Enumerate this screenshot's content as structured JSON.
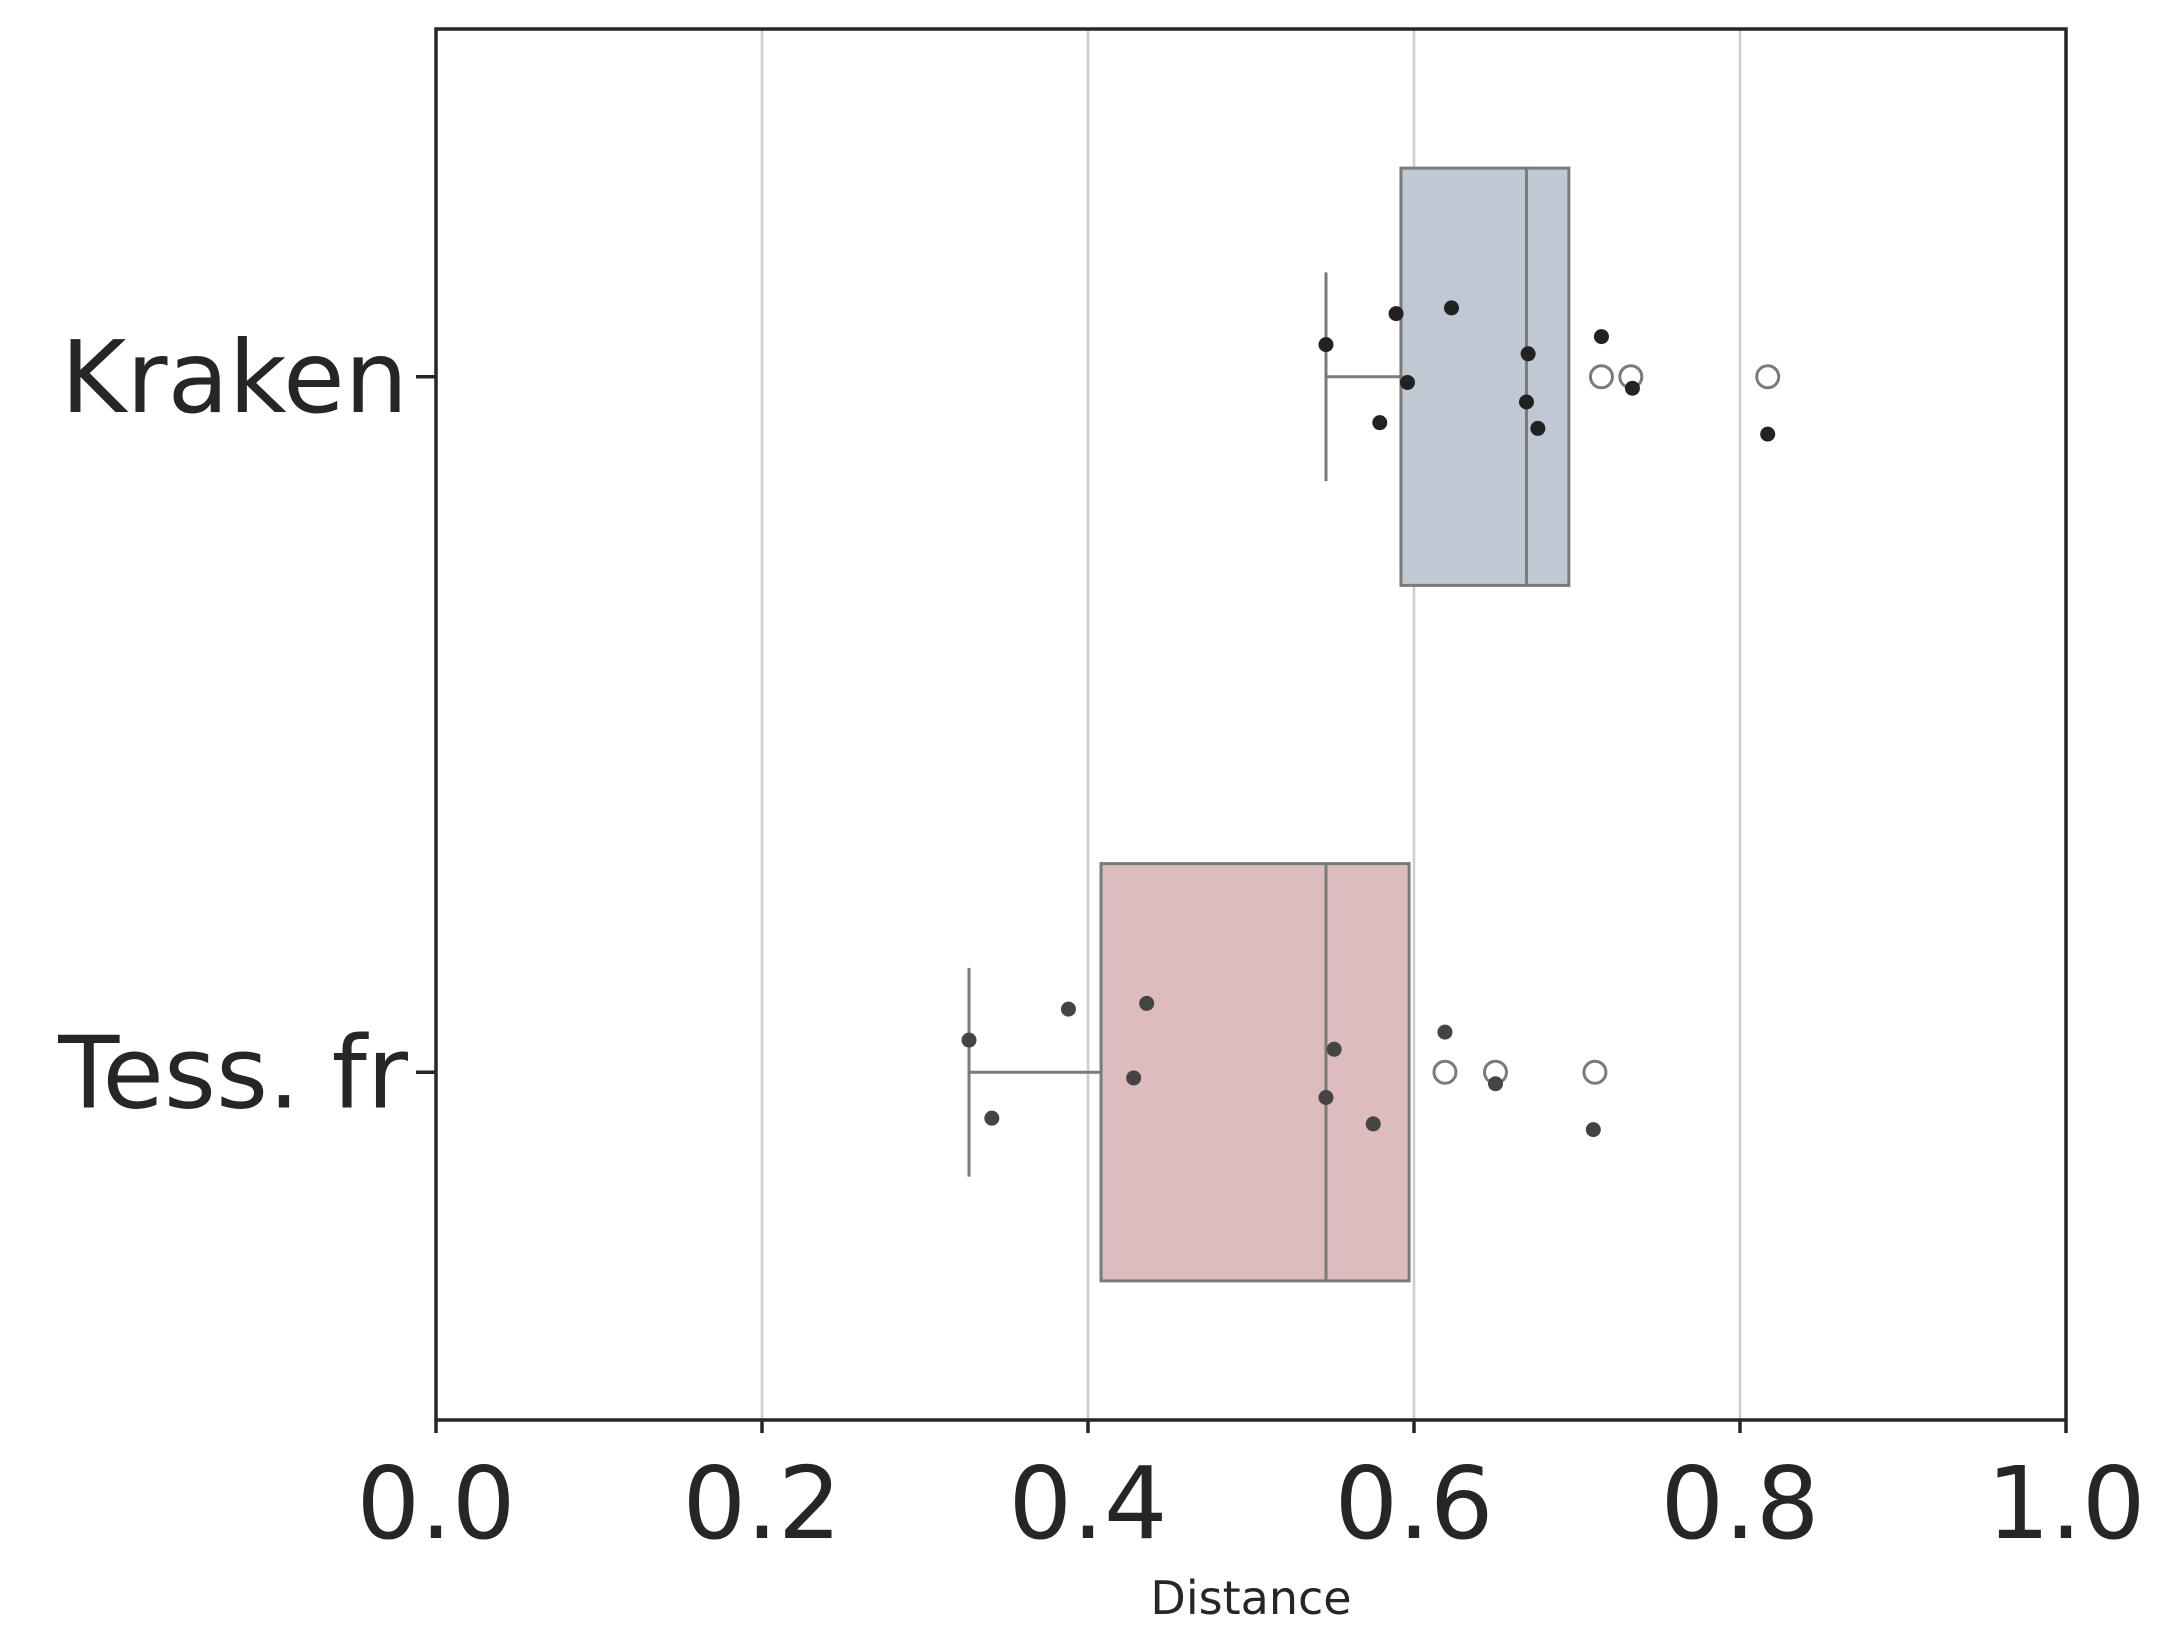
{
  "chart_data": {
    "type": "box",
    "orientation": "horizontal",
    "title": "",
    "xlabel": "Distance",
    "ylabel": "",
    "xlim": [
      0.0,
      1.0
    ],
    "xticks": [
      0.0,
      0.2,
      0.4,
      0.6,
      0.8,
      1.0
    ],
    "xtick_labels": [
      "0.0",
      "0.2",
      "0.4",
      "0.6",
      "0.8",
      "1.0"
    ],
    "grid": "vertical",
    "categories": [
      "Kraken",
      "Tess. fr"
    ],
    "series": [
      {
        "name": "Kraken",
        "box_color": "#c0c8d4",
        "box": {
          "whisker_low": 0.546,
          "q1": 0.592,
          "median": 0.669,
          "q3": 0.695,
          "whisker_high": 0.695
        },
        "outliers": [
          0.715,
          0.733,
          0.817
        ],
        "points": [
          0.546,
          0.579,
          0.589,
          0.596,
          0.623,
          0.669,
          0.67,
          0.676,
          0.715,
          0.734,
          0.817
        ]
      },
      {
        "name": "Tess. fr",
        "box_color": "#dcbcbc",
        "box": {
          "whisker_low": 0.327,
          "q1": 0.408,
          "median": 0.546,
          "q3": 0.597,
          "whisker_high": 0.597
        },
        "outliers": [
          0.619,
          0.65,
          0.711
        ],
        "points": [
          0.327,
          0.341,
          0.388,
          0.428,
          0.436,
          0.546,
          0.551,
          0.575,
          0.619,
          0.65,
          0.71
        ]
      }
    ],
    "colors": {
      "box_edge": "#7a7a7a",
      "point": "#222222",
      "point_alt": "#444444",
      "outlier_edge": "#7a7a7a",
      "grid": "#cccccc",
      "axes": "#262626"
    }
  }
}
